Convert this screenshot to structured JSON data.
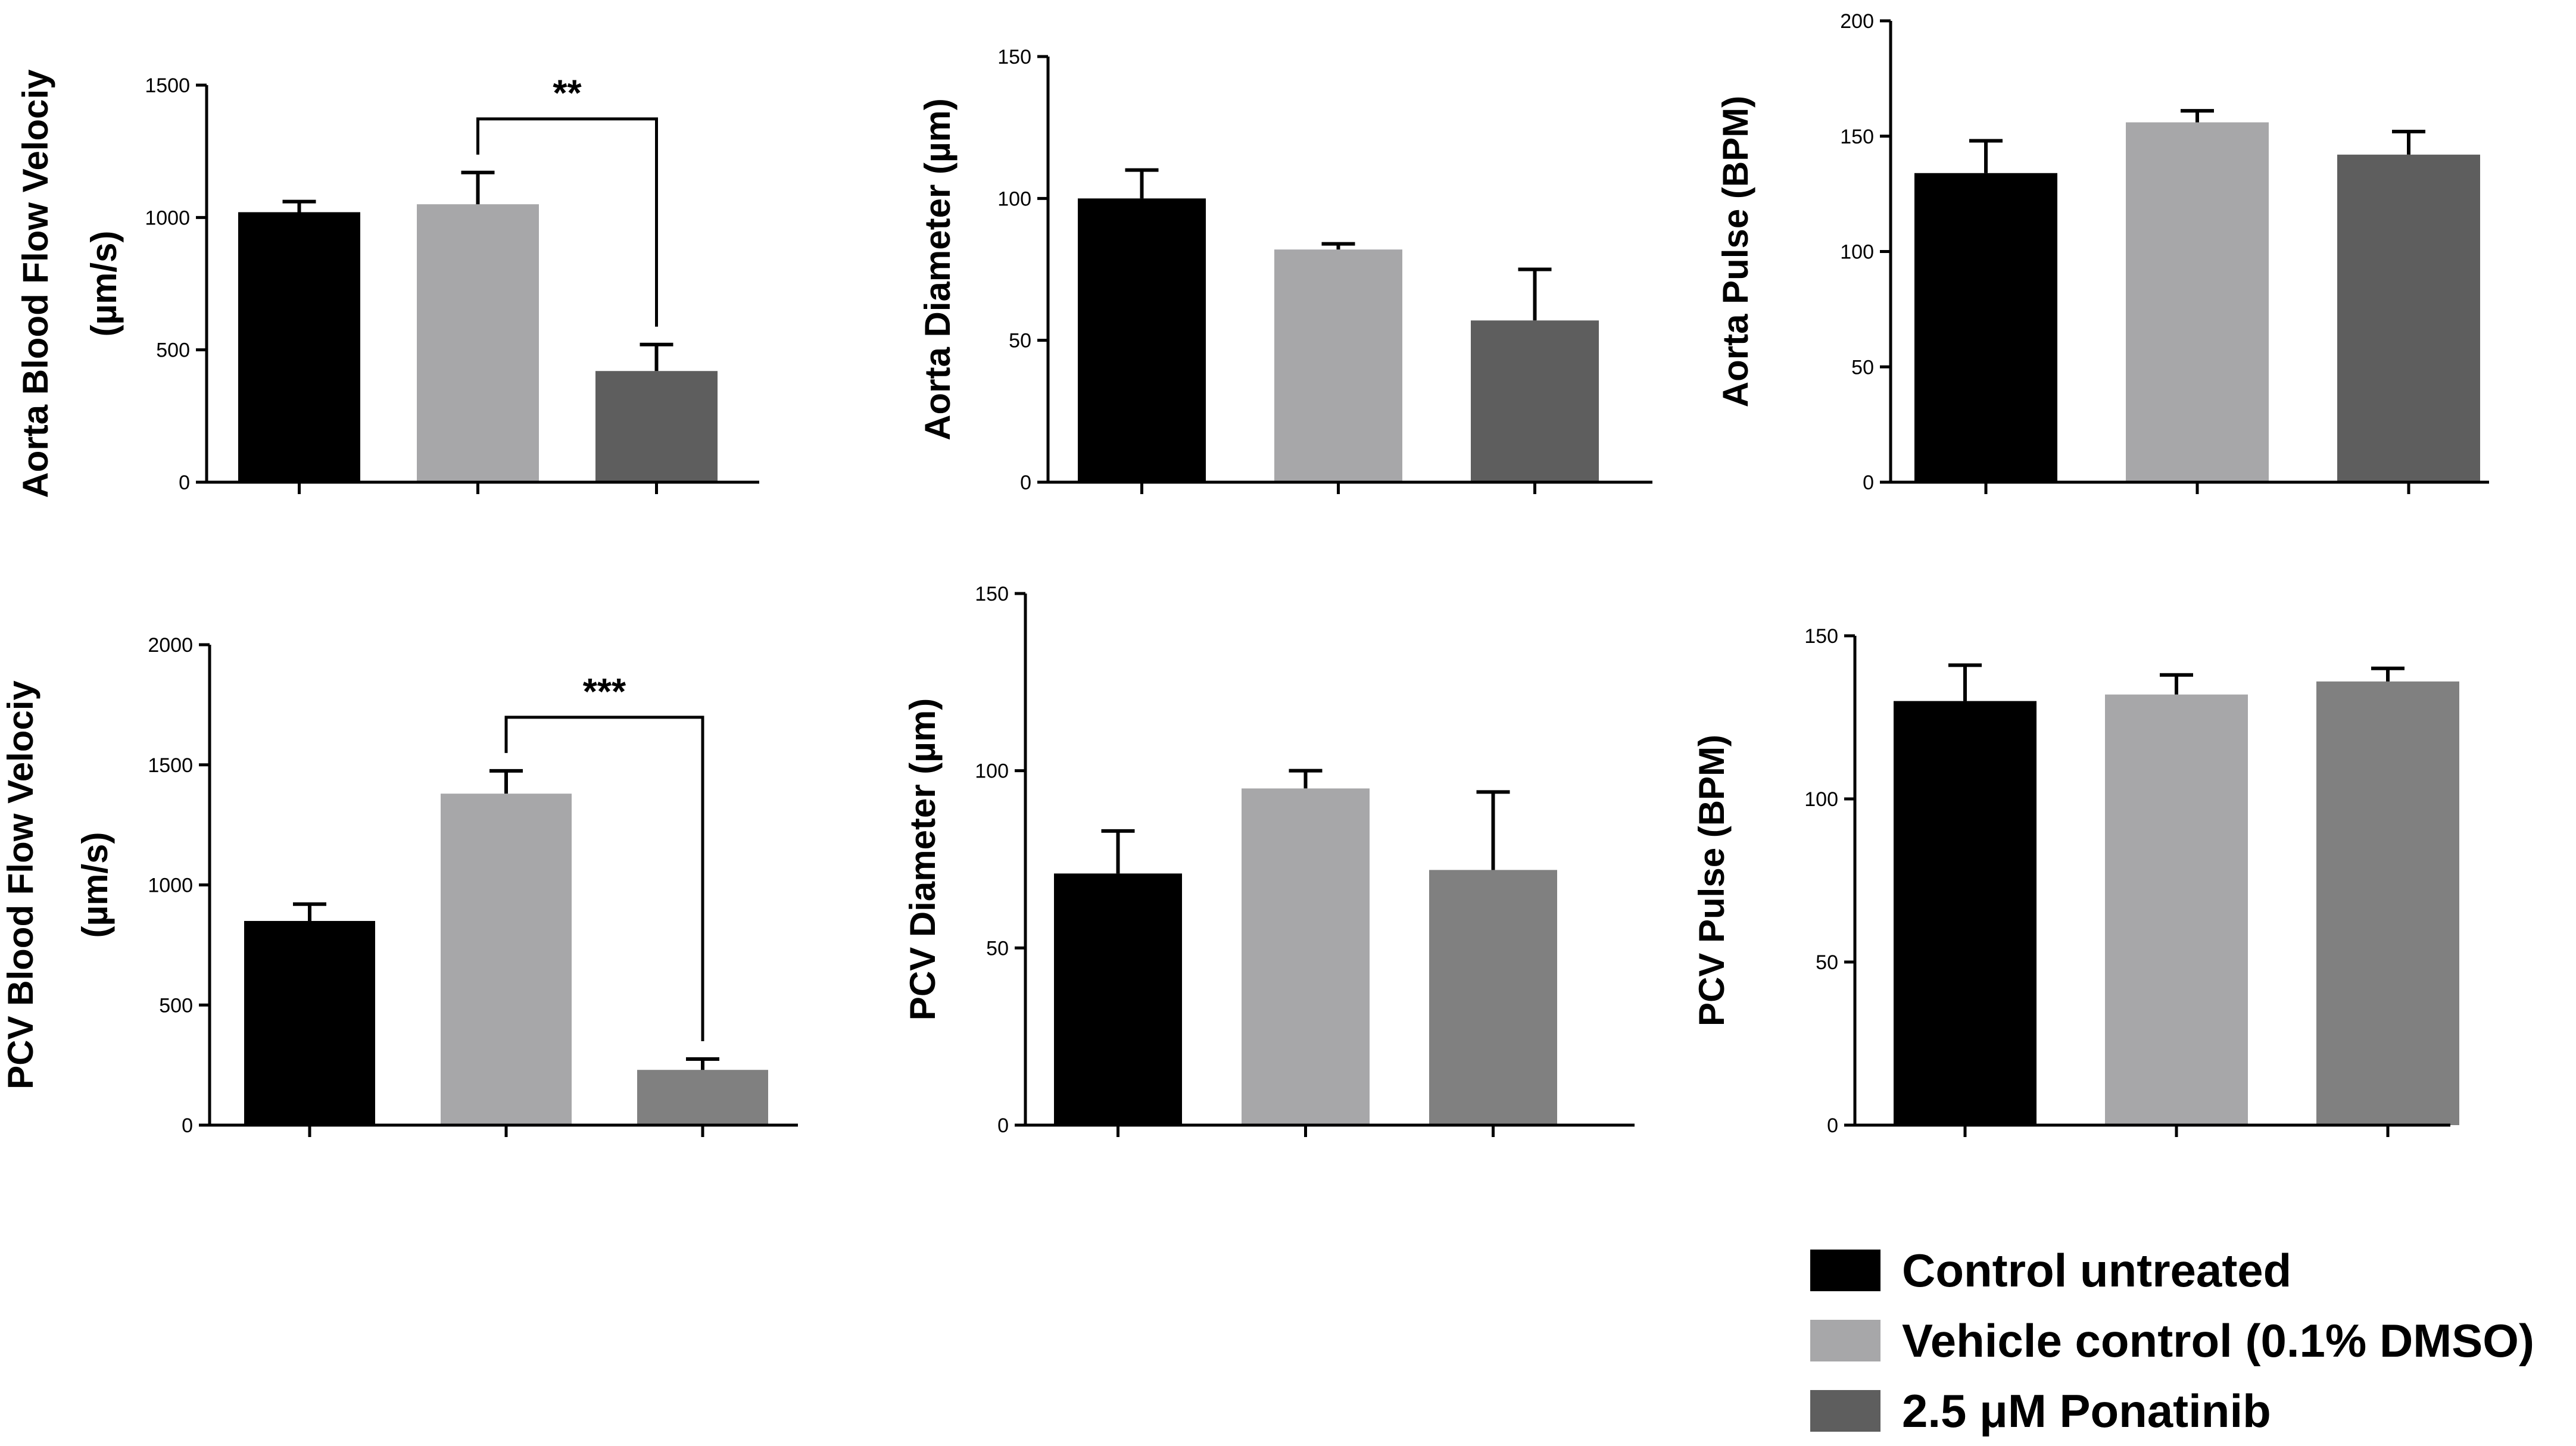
{
  "chart_data": [
    {
      "type": "bar",
      "id": "aorta-velocity",
      "ylabel_lines": [
        "Aorta Blood Flow Velociy",
        "(µm/s)"
      ],
      "ylim": [
        0,
        1500
      ],
      "yticks": [
        0,
        500,
        1000,
        1500
      ],
      "categories": [
        "Control untreated",
        "Vehicle control (0.1% DMSO)",
        "2.5 μM Ponatinib"
      ],
      "values": [
        1020,
        1050,
        420
      ],
      "errors": [
        40,
        120,
        100
      ],
      "colors": [
        "#000000",
        "#a7a7a9",
        "#5e5e5e"
      ],
      "significance": [
        {
          "from": 1,
          "to": 2,
          "label": "**"
        }
      ]
    },
    {
      "type": "bar",
      "id": "aorta-diameter",
      "ylabel_lines": [
        "Aorta Diameter (µm)"
      ],
      "ylim": [
        0,
        150
      ],
      "yticks": [
        0,
        50,
        100,
        150
      ],
      "categories": [
        "Control untreated",
        "Vehicle control (0.1% DMSO)",
        "2.5 μM Ponatinib"
      ],
      "values": [
        100,
        82,
        57
      ],
      "errors": [
        10,
        2,
        18
      ],
      "colors": [
        "#000000",
        "#a7a7a9",
        "#5e5e5e"
      ],
      "significance": []
    },
    {
      "type": "bar",
      "id": "aorta-pulse",
      "ylabel_lines": [
        "Aorta Pulse (BPM)"
      ],
      "ylim": [
        0,
        200
      ],
      "yticks": [
        0,
        50,
        100,
        150,
        200
      ],
      "categories": [
        "Control untreated",
        "Vehicle control (0.1% DMSO)",
        "2.5 μM Ponatinib"
      ],
      "values": [
        134,
        156,
        142
      ],
      "errors": [
        14,
        5,
        10
      ],
      "colors": [
        "#000000",
        "#a7a7a9",
        "#5e5e5e"
      ],
      "significance": []
    },
    {
      "type": "bar",
      "id": "pcv-velocity",
      "ylabel_lines": [
        "PCV Blood Flow Velociy",
        "(µm/s)"
      ],
      "ylim": [
        0,
        2000
      ],
      "yticks": [
        0,
        500,
        1000,
        1500,
        2000
      ],
      "categories": [
        "Control untreated",
        "Vehicle control (0.1% DMSO)",
        "2.5 μM Ponatinib"
      ],
      "values": [
        850,
        1380,
        230
      ],
      "errors": [
        70,
        95,
        45
      ],
      "colors": [
        "#000000",
        "#a7a7a9",
        "#808080"
      ],
      "significance": [
        {
          "from": 1,
          "to": 2,
          "label": "***"
        }
      ]
    },
    {
      "type": "bar",
      "id": "pcv-diameter",
      "ylabel_lines": [
        "PCV Diameter (µm)"
      ],
      "ylim": [
        0,
        150
      ],
      "yticks": [
        0,
        50,
        100,
        150
      ],
      "categories": [
        "Control untreated",
        "Vehicle control (0.1% DMSO)",
        "2.5 μM Ponatinib"
      ],
      "values": [
        71,
        95,
        72
      ],
      "errors": [
        12,
        5,
        22
      ],
      "colors": [
        "#000000",
        "#a7a7a9",
        "#808080"
      ],
      "significance": []
    },
    {
      "type": "bar",
      "id": "pcv-pulse",
      "ylabel_lines": [
        "PCV Pulse (BPM)"
      ],
      "ylim": [
        0,
        150
      ],
      "yticks": [
        0,
        50,
        100,
        150
      ],
      "categories": [
        "Control untreated",
        "Vehicle control (0.1% DMSO)",
        "2.5 μM Ponatinib"
      ],
      "values": [
        130,
        132,
        136
      ],
      "errors": [
        11,
        6,
        4
      ],
      "colors": [
        "#000000",
        "#a7a7a9",
        "#808080"
      ],
      "significance": []
    }
  ],
  "legend": {
    "items": [
      {
        "label": "Control untreated",
        "color": "#000000"
      },
      {
        "label": "Vehicle control (0.1% DMSO)",
        "color": "#a7a7a9"
      },
      {
        "label": "2.5 μM Ponatinib",
        "color": "#5e5e5e"
      }
    ]
  }
}
